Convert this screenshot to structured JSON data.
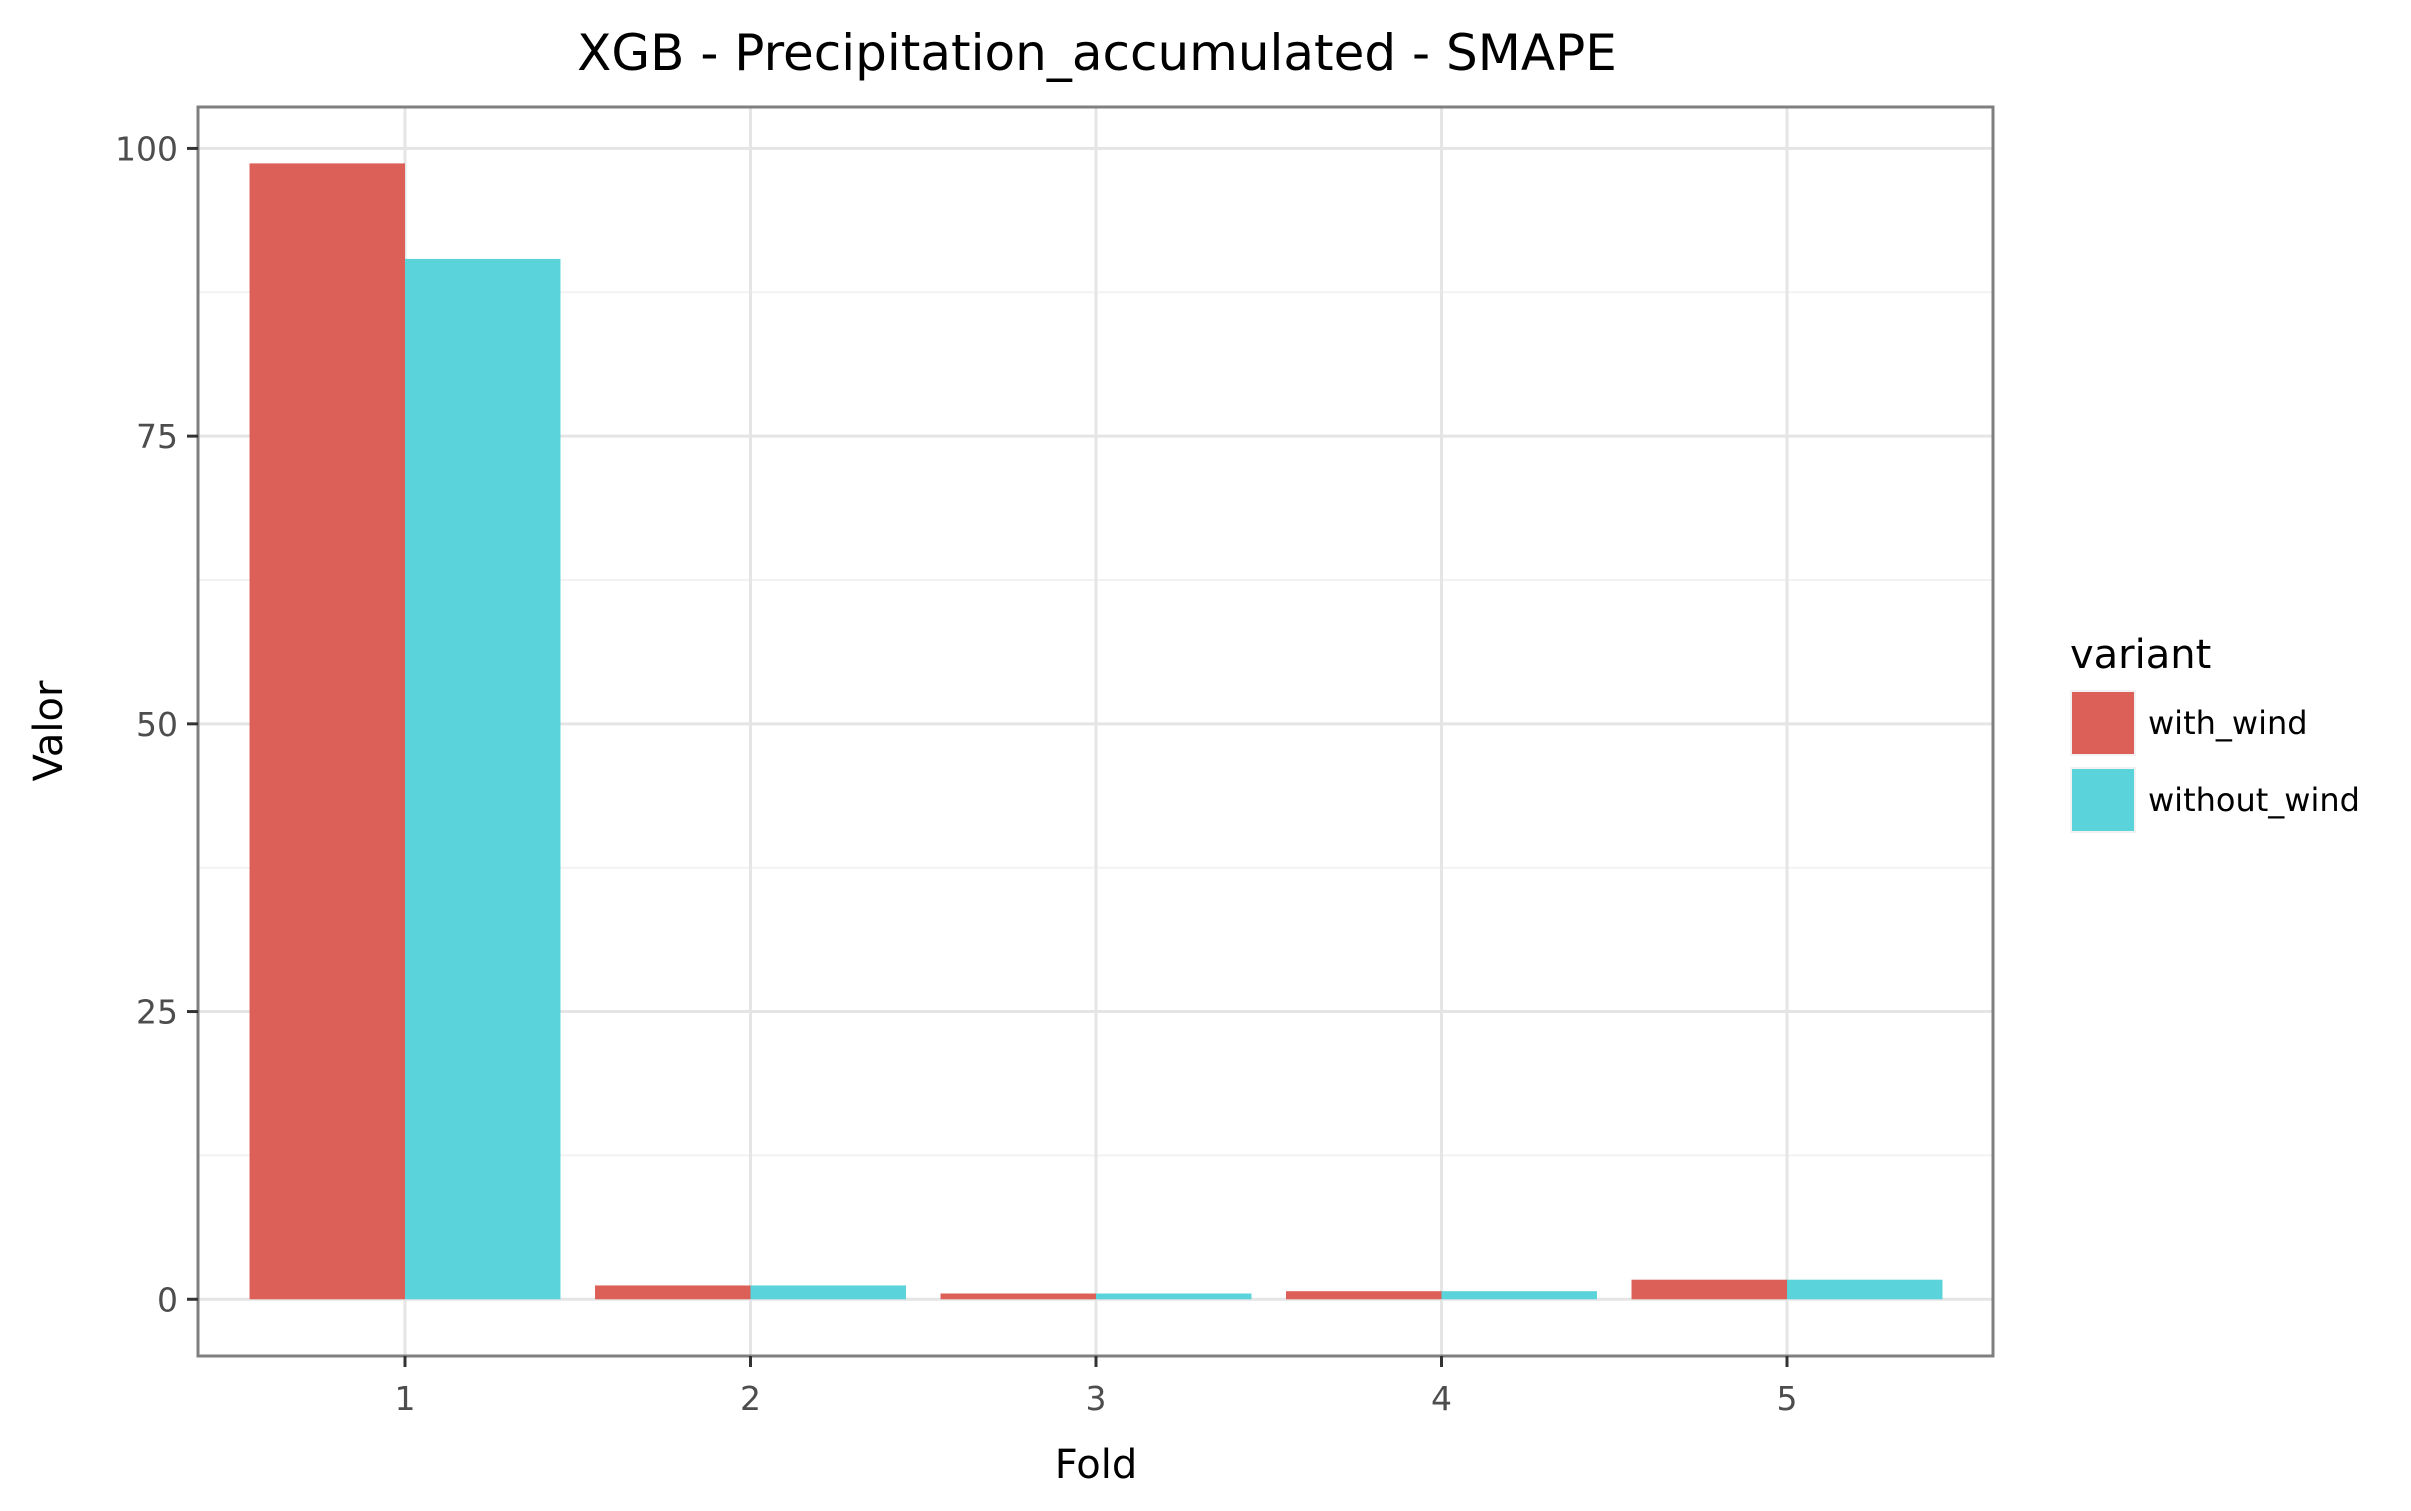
{
  "chart_data": {
    "type": "bar",
    "title": "XGB - Precipitation_accumulated - SMAPE",
    "xlabel": "Fold",
    "ylabel": "Valor",
    "categories": [
      "1",
      "2",
      "3",
      "4",
      "5"
    ],
    "series": [
      {
        "name": "with_wind",
        "color": "#dc5f58",
        "values": [
          98.7,
          1.2,
          0.5,
          0.7,
          1.7
        ]
      },
      {
        "name": "without_wind",
        "color": "#5ad3db",
        "values": [
          90.4,
          1.2,
          0.5,
          0.7,
          1.7
        ]
      }
    ],
    "ylim": [
      -4.93,
      103.6
    ],
    "yticks": [
      0,
      25,
      50,
      75,
      100
    ],
    "grid": true,
    "legend": {
      "title": "variant",
      "placement": "right"
    }
  }
}
